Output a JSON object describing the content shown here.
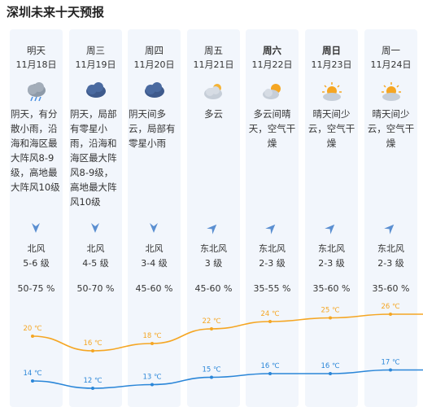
{
  "title": "深圳未来十天预报",
  "days": [
    {
      "weekday": "明天",
      "date": "11月18日",
      "icon": "cloud-rain-icon",
      "desc": "阴天，有分散小雨，沿海和海区最大阵风8-9级，高地最大阵风10级",
      "wind_dir": "北风",
      "wind_level": "5-6 级",
      "wind_from": "north",
      "humidity": "50-75 %",
      "high": "20 ℃",
      "low": "14 ℃"
    },
    {
      "weekday": "周三",
      "date": "11月19日",
      "icon": "cloud-rain-icon",
      "desc": "阴天，局部有零星小雨，沿海和海区最大阵风8-9级，高地最大阵风10级",
      "wind_dir": "北风",
      "wind_level": "4-5 级",
      "wind_from": "north",
      "humidity": "50-70 %",
      "high": "16 ℃",
      "low": "12 ℃"
    },
    {
      "weekday": "周四",
      "date": "11月20日",
      "icon": "cloud-rain-icon",
      "desc": "阴天间多云，局部有零星小雨",
      "wind_dir": "北风",
      "wind_level": "3-4 级",
      "wind_from": "north",
      "humidity": "45-60 %",
      "high": "18 ℃",
      "low": "13 ℃"
    },
    {
      "weekday": "周五",
      "date": "11月21日",
      "icon": "cloudy-icon",
      "desc": "多云",
      "wind_dir": "东北风",
      "wind_level": "3 级",
      "wind_from": "northeast",
      "humidity": "45-60 %",
      "high": "22 ℃",
      "low": "15 ℃"
    },
    {
      "weekday": "周六",
      "date": "11月22日",
      "icon": "partly-cloudy-icon",
      "desc": "多云间晴天，空气干燥",
      "wind_dir": "东北风",
      "wind_level": "2-3 级",
      "wind_from": "northeast",
      "humidity": "35-55 %",
      "high": "24 ℃",
      "low": "16 ℃"
    },
    {
      "weekday": "周日",
      "date": "11月23日",
      "icon": "sun-cloud-icon",
      "desc": "晴天间少云，空气干燥",
      "wind_dir": "东北风",
      "wind_level": "2-3 级",
      "wind_from": "northeast",
      "humidity": "35-60 %",
      "high": "25 ℃",
      "low": "16 ℃"
    },
    {
      "weekday": "周一",
      "date": "11月24日",
      "icon": "sun-cloud-icon",
      "desc": "晴天间少云，空气干燥",
      "wind_dir": "东北风",
      "wind_level": "2-3 级",
      "wind_from": "northeast",
      "humidity": "35-60 %",
      "high": "26 ℃",
      "low": "17 ℃"
    }
  ],
  "colors": {
    "high_line": "#f5a623",
    "low_line": "#2a86d8",
    "card_bg": "#f2f6fc",
    "arrow": "#5b8fd1"
  }
}
